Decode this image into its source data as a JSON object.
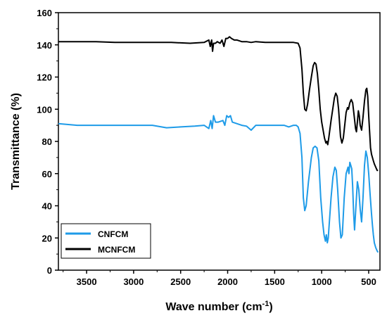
{
  "chart_data": {
    "type": "line",
    "title": "",
    "xlabel": "Wave number (cm",
    "xlabel_sup": "-1",
    "xlabel_suffix": ")",
    "ylabel": "Transmittance (%)",
    "xlim": [
      3800,
      380
    ],
    "ylim": [
      0,
      160
    ],
    "x_reversed": true,
    "x_ticks": [
      3500,
      3000,
      2500,
      2000,
      1500,
      1000,
      500
    ],
    "y_ticks": [
      0,
      20,
      40,
      60,
      80,
      100,
      120,
      140,
      160
    ],
    "grid": false,
    "legend_position": "bottom-left",
    "series": [
      {
        "name": "CNFCM",
        "color": "#1E9BE8",
        "points": [
          [
            3800,
            91
          ],
          [
            3600,
            90
          ],
          [
            3400,
            90
          ],
          [
            3200,
            90
          ],
          [
            3000,
            90
          ],
          [
            2800,
            90
          ],
          [
            2650,
            88.5
          ],
          [
            2500,
            89
          ],
          [
            2350,
            89.5
          ],
          [
            2250,
            90
          ],
          [
            2200,
            88
          ],
          [
            2180,
            93
          ],
          [
            2165,
            88
          ],
          [
            2150,
            96
          ],
          [
            2130,
            92
          ],
          [
            2100,
            92
          ],
          [
            2050,
            93
          ],
          [
            2030,
            90
          ],
          [
            2010,
            96
          ],
          [
            1990,
            95
          ],
          [
            1970,
            96
          ],
          [
            1950,
            92
          ],
          [
            1900,
            91
          ],
          [
            1850,
            90
          ],
          [
            1800,
            89.5
          ],
          [
            1750,
            87
          ],
          [
            1700,
            90
          ],
          [
            1600,
            90
          ],
          [
            1500,
            90
          ],
          [
            1400,
            90
          ],
          [
            1350,
            89
          ],
          [
            1300,
            90
          ],
          [
            1270,
            90
          ],
          [
            1250,
            89
          ],
          [
            1230,
            85
          ],
          [
            1210,
            70
          ],
          [
            1195,
            45
          ],
          [
            1180,
            37
          ],
          [
            1165,
            40
          ],
          [
            1140,
            55
          ],
          [
            1110,
            70
          ],
          [
            1090,
            76
          ],
          [
            1070,
            77
          ],
          [
            1050,
            76
          ],
          [
            1030,
            68
          ],
          [
            1010,
            45
          ],
          [
            990,
            30
          ],
          [
            975,
            22
          ],
          [
            960,
            18
          ],
          [
            950,
            22
          ],
          [
            940,
            17
          ],
          [
            930,
            20
          ],
          [
            900,
            45
          ],
          [
            880,
            58
          ],
          [
            860,
            64
          ],
          [
            845,
            62
          ],
          [
            830,
            50
          ],
          [
            810,
            30
          ],
          [
            795,
            20
          ],
          [
            780,
            22
          ],
          [
            760,
            45
          ],
          [
            740,
            60
          ],
          [
            720,
            64
          ],
          [
            710,
            60
          ],
          [
            700,
            67
          ],
          [
            690,
            65
          ],
          [
            680,
            63
          ],
          [
            670,
            52
          ],
          [
            660,
            35
          ],
          [
            650,
            25
          ],
          [
            635,
            40
          ],
          [
            620,
            55
          ],
          [
            605,
            50
          ],
          [
            590,
            38
          ],
          [
            575,
            30
          ],
          [
            560,
            45
          ],
          [
            545,
            65
          ],
          [
            530,
            74
          ],
          [
            515,
            70
          ],
          [
            500,
            60
          ],
          [
            485,
            47
          ],
          [
            470,
            35
          ],
          [
            460,
            28
          ],
          [
            450,
            22
          ],
          [
            440,
            17
          ],
          [
            425,
            14
          ],
          [
            410,
            12
          ],
          [
            400,
            11
          ]
        ]
      },
      {
        "name": "MCNFCM",
        "color": "#000000",
        "points": [
          [
            3800,
            142
          ],
          [
            3600,
            142
          ],
          [
            3400,
            142
          ],
          [
            3200,
            141.5
          ],
          [
            3000,
            141.5
          ],
          [
            2800,
            141.5
          ],
          [
            2600,
            141.5
          ],
          [
            2400,
            141
          ],
          [
            2250,
            141.5
          ],
          [
            2200,
            143
          ],
          [
            2185,
            139
          ],
          [
            2170,
            143
          ],
          [
            2160,
            136
          ],
          [
            2150,
            141
          ],
          [
            2130,
            141
          ],
          [
            2110,
            142
          ],
          [
            2080,
            141
          ],
          [
            2060,
            143
          ],
          [
            2040,
            139
          ],
          [
            2020,
            144
          ],
          [
            2000,
            144
          ],
          [
            1980,
            145
          ],
          [
            1960,
            144
          ],
          [
            1930,
            143
          ],
          [
            1900,
            143
          ],
          [
            1850,
            142
          ],
          [
            1800,
            142
          ],
          [
            1750,
            141.5
          ],
          [
            1700,
            142
          ],
          [
            1600,
            141.5
          ],
          [
            1500,
            141.5
          ],
          [
            1400,
            141.5
          ],
          [
            1300,
            141.5
          ],
          [
            1250,
            141
          ],
          [
            1230,
            138
          ],
          [
            1210,
            125
          ],
          [
            1195,
            110
          ],
          [
            1180,
            100
          ],
          [
            1165,
            99
          ],
          [
            1150,
            103
          ],
          [
            1130,
            112
          ],
          [
            1110,
            120
          ],
          [
            1090,
            127
          ],
          [
            1075,
            129
          ],
          [
            1060,
            128
          ],
          [
            1045,
            122
          ],
          [
            1030,
            112
          ],
          [
            1015,
            100
          ],
          [
            1000,
            92
          ],
          [
            985,
            87
          ],
          [
            970,
            82
          ],
          [
            955,
            79
          ],
          [
            945,
            80
          ],
          [
            935,
            78
          ],
          [
            925,
            82
          ],
          [
            900,
            93
          ],
          [
            880,
            101
          ],
          [
            865,
            107
          ],
          [
            850,
            110
          ],
          [
            835,
            108
          ],
          [
            820,
            100
          ],
          [
            810,
            92
          ],
          [
            800,
            83
          ],
          [
            785,
            79
          ],
          [
            770,
            82
          ],
          [
            755,
            90
          ],
          [
            740,
            98
          ],
          [
            725,
            101
          ],
          [
            715,
            100
          ],
          [
            700,
            104
          ],
          [
            685,
            106
          ],
          [
            670,
            104
          ],
          [
            655,
            96
          ],
          [
            640,
            88
          ],
          [
            630,
            86
          ],
          [
            620,
            92
          ],
          [
            610,
            99
          ],
          [
            600,
            96
          ],
          [
            590,
            90
          ],
          [
            575,
            87
          ],
          [
            560,
            95
          ],
          [
            545,
            105
          ],
          [
            530,
            112
          ],
          [
            520,
            113
          ],
          [
            510,
            108
          ],
          [
            500,
            96
          ],
          [
            490,
            86
          ],
          [
            480,
            76
          ],
          [
            470,
            72
          ],
          [
            460,
            70
          ],
          [
            450,
            68
          ],
          [
            440,
            66
          ],
          [
            425,
            64
          ],
          [
            410,
            62
          ],
          [
            400,
            62
          ]
        ]
      }
    ]
  }
}
